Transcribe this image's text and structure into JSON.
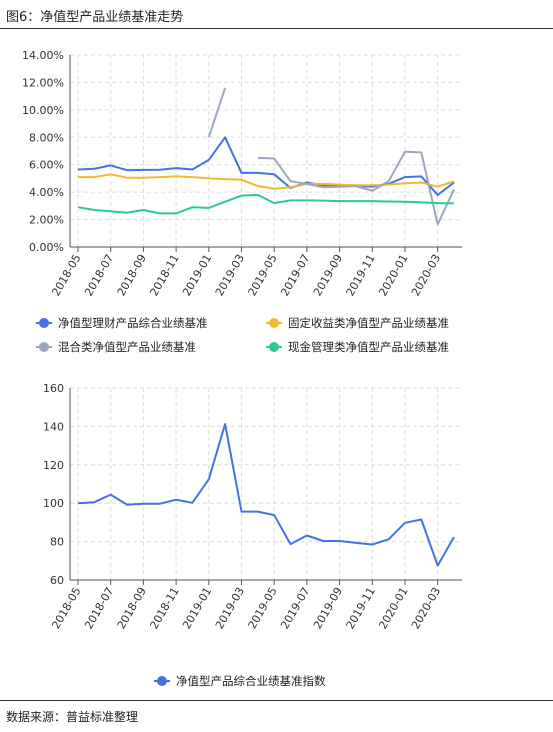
{
  "figure_title": "图6：净值型产品业绩基准走势",
  "source": "数据来源：普益标准整理",
  "chart_data": [
    {
      "type": "line",
      "x": [
        "2018-05",
        "2018-06",
        "2018-07",
        "2018-08",
        "2018-09",
        "2018-10",
        "2018-11",
        "2018-12",
        "2019-01",
        "2019-02",
        "2019-03",
        "2019-04",
        "2019-05",
        "2019-06",
        "2019-07",
        "2019-08",
        "2019-09",
        "2019-10",
        "2019-11",
        "2019-12",
        "2020-01",
        "2020-02",
        "2020-03",
        "2020-04"
      ],
      "x_tick_labels": [
        "2018-05",
        "2018-07",
        "2018-09",
        "2018-11",
        "2019-01",
        "2019-03",
        "2019-05",
        "2019-07",
        "2019-09",
        "2019-11",
        "2020-01",
        "2020-03"
      ],
      "ylim": [
        0,
        14
      ],
      "yticks": [
        0,
        2,
        4,
        6,
        8,
        10,
        12,
        14
      ],
      "ytick_labels": [
        "0.00%",
        "2.00%",
        "4.00%",
        "6.00%",
        "8.00%",
        "10.00%",
        "12.00%",
        "14.00%"
      ],
      "grid": true,
      "legend_position": "bottom",
      "series": [
        {
          "name": "净值型理财产品综合业绩基准",
          "color": "#4472e4",
          "values": [
            5.65,
            5.7,
            5.95,
            5.6,
            5.62,
            5.63,
            5.75,
            5.65,
            6.35,
            8.0,
            5.4,
            5.4,
            5.3,
            4.3,
            4.7,
            4.5,
            4.5,
            4.45,
            4.4,
            4.6,
            5.1,
            5.15,
            3.8,
            4.7
          ]
        },
        {
          "name": "固定收益类净值型产品业绩基准",
          "color": "#f2b82e",
          "values": [
            5.1,
            5.1,
            5.3,
            5.05,
            5.05,
            5.1,
            5.15,
            5.1,
            5.0,
            4.95,
            4.9,
            4.45,
            4.25,
            4.35,
            4.6,
            4.6,
            4.55,
            4.5,
            4.5,
            4.55,
            4.65,
            4.7,
            4.4,
            4.8
          ]
        },
        {
          "name": "混合类净值型产品业绩基准",
          "color": "#9da5bf",
          "values": [
            null,
            null,
            null,
            null,
            null,
            null,
            null,
            null,
            8.0,
            11.6,
            null,
            6.5,
            6.45,
            4.8,
            4.6,
            4.35,
            4.4,
            4.45,
            4.1,
            4.8,
            6.95,
            6.9,
            1.65,
            4.2
          ]
        },
        {
          "name": "现金管理类净值型产品业绩基准",
          "color": "#2ec993",
          "values": [
            2.9,
            2.7,
            2.6,
            2.5,
            2.7,
            2.45,
            2.45,
            2.9,
            2.85,
            3.3,
            3.75,
            3.8,
            3.2,
            3.4,
            3.4,
            3.38,
            3.35,
            3.35,
            3.35,
            3.32,
            3.3,
            3.25,
            3.2,
            3.18
          ]
        }
      ]
    },
    {
      "type": "line",
      "x": [
        "2018-05",
        "2018-06",
        "2018-07",
        "2018-08",
        "2018-09",
        "2018-10",
        "2018-11",
        "2018-12",
        "2019-01",
        "2019-02",
        "2019-03",
        "2019-04",
        "2019-05",
        "2019-06",
        "2019-07",
        "2019-08",
        "2019-09",
        "2019-10",
        "2019-11",
        "2019-12",
        "2020-01",
        "2020-02",
        "2020-03",
        "2020-04"
      ],
      "x_tick_labels": [
        "2018-05",
        "2018-07",
        "2018-09",
        "2018-11",
        "2019-01",
        "2019-03",
        "2019-05",
        "2019-07",
        "2019-09",
        "2019-11",
        "2020-01",
        "2020-03"
      ],
      "ylim": [
        60,
        160
      ],
      "yticks": [
        60,
        80,
        100,
        120,
        140,
        160
      ],
      "ytick_labels": [
        "60",
        "80",
        "100",
        "120",
        "140",
        "160"
      ],
      "grid": true,
      "legend_position": "bottom",
      "series": [
        {
          "name": "净值型产品综合业绩基准指数",
          "color": "#4472e4",
          "values": [
            100,
            100.5,
            104.5,
            99.2,
            99.7,
            99.7,
            101.8,
            100.2,
            112.5,
            141.2,
            95.6,
            95.6,
            93.8,
            78.7,
            83.2,
            80.3,
            80.3,
            79.3,
            78.5,
            81.2,
            89.8,
            91.5,
            67.5,
            82.4
          ]
        }
      ]
    }
  ]
}
